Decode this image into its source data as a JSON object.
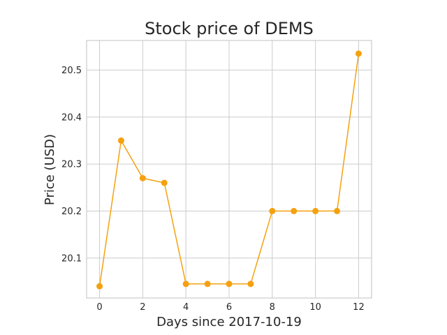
{
  "chart_data": {
    "type": "line",
    "title": "Stock price of DEMS",
    "xlabel": "Days since 2017-10-19",
    "ylabel": "Price (USD)",
    "x": [
      0,
      1,
      2,
      3,
      4,
      5,
      6,
      7,
      8,
      9,
      10,
      11,
      12
    ],
    "series": [
      {
        "values": [
          20.04,
          20.35,
          20.27,
          20.26,
          20.045,
          20.045,
          20.045,
          20.045,
          20.2,
          20.2,
          20.2,
          20.2,
          20.535
        ]
      }
    ],
    "xlim": [
      -0.6,
      12.6
    ],
    "ylim": [
      20.015,
      20.563
    ],
    "x_ticks": [
      0,
      2,
      4,
      6,
      8,
      10,
      12
    ],
    "y_ticks": [
      20.1,
      20.2,
      20.3,
      20.4,
      20.5
    ],
    "x_tick_labels": [
      "0",
      "2",
      "4",
      "6",
      "8",
      "10",
      "12"
    ],
    "y_tick_labels": [
      "20.1",
      "20.2",
      "20.3",
      "20.4",
      "20.5"
    ],
    "grid": true,
    "colors": {
      "line": "#f5a10f",
      "marker": "#f5a10f",
      "grid": "#cccccc",
      "frame": "#cccccc",
      "text": "#262626"
    }
  }
}
